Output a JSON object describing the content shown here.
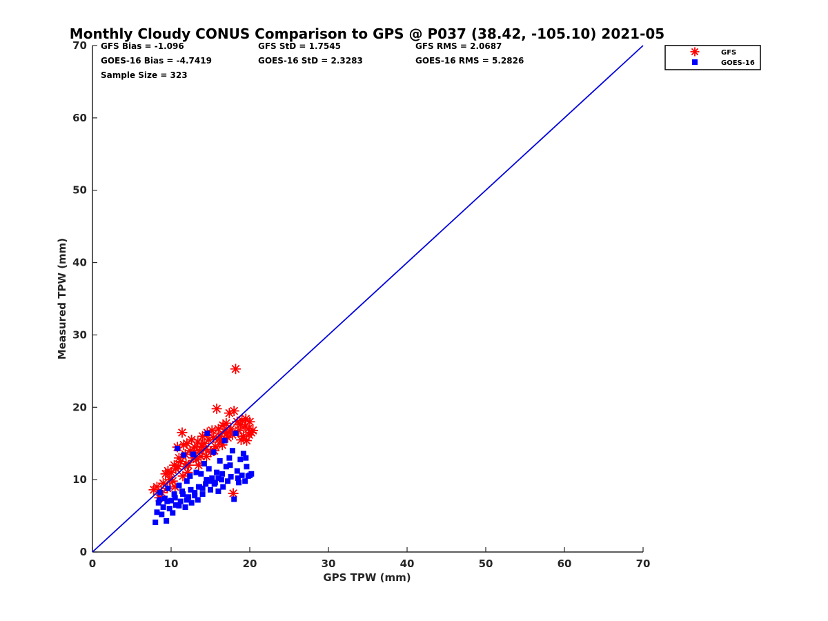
{
  "chart_data": {
    "type": "scatter",
    "title": "Monthly Cloudy CONUS Comparison to GPS @ P037 (38.42, -105.10) 2021-05",
    "xlabel": "GPS TPW (mm)",
    "ylabel": "Measured TPW (mm)",
    "xlim": [
      0,
      70
    ],
    "ylim": [
      0,
      70
    ],
    "xticks": [
      "0",
      "10",
      "20",
      "30",
      "40",
      "50",
      "60",
      "70"
    ],
    "yticks": [
      "0",
      "10",
      "20",
      "30",
      "40",
      "50",
      "60",
      "70"
    ],
    "grid": false,
    "legend_position": "top-right",
    "stats": [
      [
        "GFS Bias = -1.096",
        "GFS StD = 1.7545",
        "GFS RMS = 2.0687"
      ],
      [
        "GOES-16 Bias = -4.7419",
        "GOES-16 StD = 2.3283",
        "GOES-16 RMS = 5.2826"
      ],
      [
        "Sample Size = 323"
      ]
    ],
    "reference_line": {
      "x": [
        0,
        70
      ],
      "y": [
        0,
        70
      ],
      "color": "#0000dd"
    },
    "series": [
      {
        "name": "GFS",
        "marker": "asterisk",
        "color": "#ff0000",
        "points": [
          [
            7.8,
            8.6
          ],
          [
            8.2,
            9.0
          ],
          [
            8.5,
            7.5
          ],
          [
            8.8,
            8.2
          ],
          [
            9.0,
            9.5
          ],
          [
            9.3,
            10.8
          ],
          [
            9.6,
            11.2
          ],
          [
            9.8,
            10.0
          ],
          [
            10.0,
            11.0
          ],
          [
            10.2,
            9.8
          ],
          [
            10.4,
            12.0
          ],
          [
            10.6,
            11.5
          ],
          [
            10.8,
            14.5
          ],
          [
            11.0,
            13.0
          ],
          [
            11.2,
            12.5
          ],
          [
            11.4,
            16.5
          ],
          [
            11.6,
            14.8
          ],
          [
            11.8,
            13.5
          ],
          [
            12.0,
            15.0
          ],
          [
            12.2,
            12.0
          ],
          [
            12.4,
            14.0
          ],
          [
            12.6,
            15.5
          ],
          [
            12.8,
            13.0
          ],
          [
            13.0,
            14.5
          ],
          [
            13.2,
            12.8
          ],
          [
            13.4,
            15.2
          ],
          [
            13.6,
            14.0
          ],
          [
            13.8,
            13.2
          ],
          [
            14.0,
            16.0
          ],
          [
            14.2,
            15.0
          ],
          [
            14.4,
            14.2
          ],
          [
            14.6,
            16.5
          ],
          [
            14.8,
            15.5
          ],
          [
            15.0,
            13.8
          ],
          [
            15.2,
            16.8
          ],
          [
            15.4,
            15.8
          ],
          [
            15.6,
            14.6
          ],
          [
            15.8,
            19.8
          ],
          [
            16.0,
            17.0
          ],
          [
            16.2,
            16.0
          ],
          [
            16.4,
            15.2
          ],
          [
            16.6,
            17.5
          ],
          [
            16.8,
            16.6
          ],
          [
            17.0,
            17.8
          ],
          [
            17.2,
            15.8
          ],
          [
            17.4,
            19.2
          ],
          [
            17.6,
            17.0
          ],
          [
            17.8,
            16.2
          ],
          [
            18.0,
            19.5
          ],
          [
            18.2,
            25.3
          ],
          [
            17.9,
            8.1
          ],
          [
            18.4,
            18.0
          ],
          [
            18.6,
            16.8
          ],
          [
            18.8,
            17.6
          ],
          [
            19.0,
            18.2
          ],
          [
            19.2,
            16.0
          ],
          [
            19.4,
            17.4
          ],
          [
            19.6,
            15.4
          ],
          [
            19.8,
            17.0
          ],
          [
            20.0,
            18.0
          ],
          [
            20.2,
            16.5
          ],
          [
            20.4,
            16.8
          ],
          [
            19.5,
            18.4
          ],
          [
            18.9,
            15.5
          ],
          [
            12.1,
            11.0
          ],
          [
            13.5,
            12.0
          ],
          [
            11.5,
            10.5
          ],
          [
            10.5,
            9.0
          ],
          [
            9.5,
            8.8
          ],
          [
            14.5,
            13.2
          ],
          [
            15.5,
            14.0
          ],
          [
            16.5,
            14.8
          ],
          [
            17.5,
            16.6
          ],
          [
            12.9,
            13.8
          ],
          [
            11.9,
            12.2
          ],
          [
            10.9,
            11.8
          ],
          [
            13.9,
            14.6
          ],
          [
            16.1,
            15.6
          ],
          [
            17.1,
            16.4
          ],
          [
            19.9,
            16.2
          ]
        ]
      },
      {
        "name": "GOES-16",
        "marker": "square",
        "color": "#0000ff",
        "points": [
          [
            8.0,
            4.1
          ],
          [
            8.2,
            5.5
          ],
          [
            8.4,
            6.8
          ],
          [
            8.6,
            8.2
          ],
          [
            8.8,
            5.2
          ],
          [
            9.0,
            6.2
          ],
          [
            9.2,
            7.4
          ],
          [
            9.4,
            4.3
          ],
          [
            9.6,
            8.8
          ],
          [
            9.8,
            6.0
          ],
          [
            10.0,
            7.1
          ],
          [
            10.2,
            5.4
          ],
          [
            10.4,
            8.0
          ],
          [
            10.6,
            6.5
          ],
          [
            10.8,
            14.3
          ],
          [
            11.0,
            9.2
          ],
          [
            11.2,
            7.0
          ],
          [
            11.4,
            8.4
          ],
          [
            11.6,
            13.4
          ],
          [
            11.8,
            6.2
          ],
          [
            12.0,
            9.8
          ],
          [
            12.2,
            7.6
          ],
          [
            12.4,
            10.5
          ],
          [
            12.6,
            6.8
          ],
          [
            12.8,
            13.5
          ],
          [
            13.0,
            8.2
          ],
          [
            13.2,
            11.0
          ],
          [
            13.4,
            7.2
          ],
          [
            13.6,
            9.0
          ],
          [
            13.8,
            10.8
          ],
          [
            14.0,
            8.0
          ],
          [
            14.2,
            12.2
          ],
          [
            14.4,
            9.4
          ],
          [
            14.6,
            16.4
          ],
          [
            14.8,
            11.5
          ],
          [
            15.0,
            8.6
          ],
          [
            15.2,
            10.2
          ],
          [
            15.4,
            13.8
          ],
          [
            15.6,
            9.6
          ],
          [
            15.8,
            11.0
          ],
          [
            16.0,
            8.4
          ],
          [
            16.2,
            12.6
          ],
          [
            16.4,
            10.0
          ],
          [
            16.6,
            9.0
          ],
          [
            16.8,
            15.4
          ],
          [
            17.0,
            11.8
          ],
          [
            17.2,
            9.8
          ],
          [
            17.4,
            13.0
          ],
          [
            17.6,
            10.4
          ],
          [
            17.8,
            14.0
          ],
          [
            18.0,
            7.3
          ],
          [
            18.2,
            16.4
          ],
          [
            18.4,
            11.2
          ],
          [
            18.6,
            9.6
          ],
          [
            18.8,
            12.8
          ],
          [
            19.0,
            10.6
          ],
          [
            19.2,
            13.6
          ],
          [
            19.4,
            9.8
          ],
          [
            19.6,
            11.8
          ],
          [
            19.8,
            10.5
          ],
          [
            20.0,
            10.6
          ],
          [
            20.2,
            10.8
          ],
          [
            19.5,
            13.0
          ],
          [
            8.5,
            7.2
          ],
          [
            9.5,
            7.0
          ],
          [
            10.5,
            7.5
          ],
          [
            11.5,
            8.0
          ],
          [
            12.5,
            8.6
          ],
          [
            13.5,
            9.0
          ],
          [
            14.5,
            10.0
          ],
          [
            15.5,
            9.4
          ],
          [
            16.5,
            10.8
          ],
          [
            17.5,
            12.0
          ],
          [
            18.5,
            10.2
          ],
          [
            11.0,
            6.4
          ],
          [
            12.0,
            7.2
          ],
          [
            13.0,
            7.8
          ],
          [
            14.0,
            8.8
          ],
          [
            15.0,
            9.8
          ],
          [
            16.0,
            10.2
          ]
        ]
      }
    ]
  }
}
